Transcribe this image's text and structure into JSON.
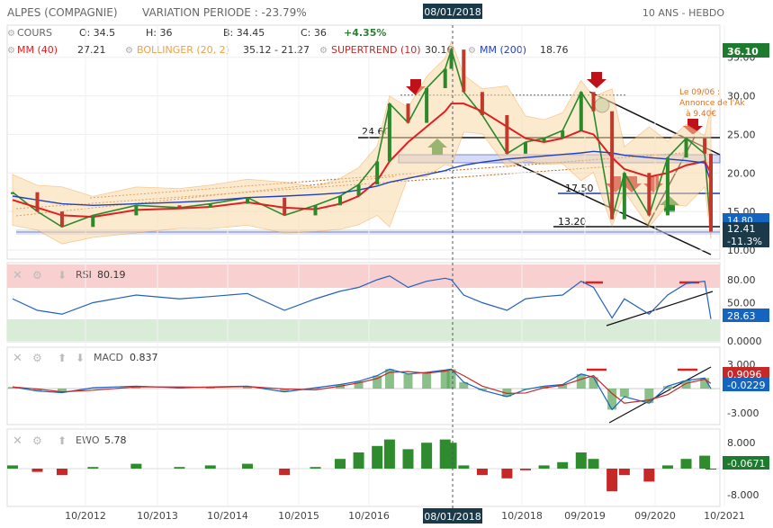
{
  "header": {
    "company": "ALPES (COMPAGNIE)",
    "variation": "VARIATION PERIODE : -23.79%",
    "date_badge": "08/01/2018",
    "period": "10 ANS - HEBDO"
  },
  "legend": {
    "cours": "COURS",
    "open": "O: 34.5",
    "high": "H: 36",
    "low": "B: 34.45",
    "close": "C: 36",
    "change": "+4.35%",
    "mm40": "MM (40)",
    "mm40_value": "27.21",
    "bollinger": "BOLLINGER (20, 2)",
    "bollinger_value": "35.12 - 21.27",
    "supertrend": "SUPERTREND (10)",
    "supertrend_value": "30.16",
    "mm200": "MM (200)",
    "mm200_value": "18.76"
  },
  "annotations": {
    "note_line1": "Le 09/06 :",
    "note_line2": "Annonce de l'Ak",
    "note_line3": "à 9.40€",
    "level_2460": "24.60",
    "level_1750": "17.50",
    "level_1320": "13.20"
  },
  "price_badges": {
    "top": "36.10",
    "last": "12.41",
    "change": "-11.3%",
    "hidden": "14.80"
  },
  "rsi": {
    "label": "RSI",
    "value": "80.19",
    "badge": "28.63"
  },
  "macd": {
    "label": "MACD",
    "value": "0.837",
    "badge1": "0.9096",
    "badge2": "-0.0229"
  },
  "ewo": {
    "label": "EWO",
    "value": "5.78",
    "badge": "-0.0671"
  },
  "colors": {
    "price": "#2a8a2a",
    "down": "#c0392b",
    "mm40": "#e02020",
    "bollinger": "#f0a040",
    "supertrend": "#b03020",
    "mm200": "#2040c0",
    "rsi": "#2060c0",
    "accent_green": "#2e7d32",
    "accent_blue": "#1565c0",
    "badge_red": "#c62828"
  },
  "chart_data": {
    "type": "line",
    "title": "ALPES (COMPAGNIE)",
    "x_ticks": [
      "10/2012",
      "10/2013",
      "10/2014",
      "10/2015",
      "10/2016",
      "08/01/2018",
      "10/2018",
      "09/2019",
      "09/2020",
      "10/2021"
    ],
    "y_ticks": [
      "35.00",
      "30.00",
      "25.00",
      "20.00",
      "15.00",
      "10.00"
    ],
    "ylim": [
      10,
      36
    ],
    "x": [
      "2012-02",
      "2012-06",
      "2012-10",
      "2013-03",
      "2013-10",
      "2014-05",
      "2014-10",
      "2015-04",
      "2015-10",
      "2016-03",
      "2016-07",
      "2016-10",
      "2017-01",
      "2017-03",
      "2017-06",
      "2017-09",
      "2017-12",
      "2018-01",
      "2018-03",
      "2018-06",
      "2018-10",
      "2019-01",
      "2019-04",
      "2019-07",
      "2019-10",
      "2019-12",
      "2020-03",
      "2020-05",
      "2020-09",
      "2020-12",
      "2021-03",
      "2021-06",
      "2021-07"
    ],
    "series": [
      {
        "name": "COURS",
        "values": [
          17.5,
          15.0,
          13.0,
          14.5,
          15.8,
          15.5,
          16.0,
          16.8,
          14.5,
          15.8,
          17.0,
          18.5,
          21.5,
          29.0,
          26.5,
          31.0,
          33.5,
          36.0,
          30.5,
          27.5,
          22.5,
          24.0,
          24.5,
          25.5,
          30.5,
          28.0,
          14.0,
          20.0,
          14.5,
          22.0,
          24.5,
          22.5,
          12.41
        ]
      },
      {
        "name": "MM (40)",
        "values": [
          16.5,
          15.5,
          14.5,
          14.3,
          15.2,
          15.4,
          15.6,
          16.2,
          15.5,
          15.3,
          16.0,
          17.0,
          19.0,
          21.5,
          24.0,
          26.0,
          28.0,
          29.0,
          29.0,
          28.0,
          26.0,
          24.5,
          24.0,
          24.5,
          25.5,
          25.0,
          22.0,
          20.5,
          19.5,
          20.0,
          21.0,
          21.5,
          20.0
        ]
      },
      {
        "name": "MM (200)",
        "values": [
          17.0,
          16.5,
          16.0,
          15.8,
          16.0,
          16.2,
          16.4,
          16.8,
          17.0,
          17.2,
          17.4,
          17.8,
          18.3,
          18.8,
          19.3,
          19.8,
          20.3,
          20.6,
          21.0,
          21.4,
          21.8,
          22.0,
          22.2,
          22.4,
          22.6,
          22.8,
          22.6,
          22.3,
          22.0,
          21.8,
          21.6,
          21.3,
          18.76
        ]
      }
    ],
    "rsi": {
      "ylim": [
        0,
        100
      ],
      "y_ticks": [
        "80.00",
        "50.00",
        "0.0000"
      ],
      "values": [
        55,
        40,
        35,
        50,
        60,
        55,
        58,
        62,
        40,
        55,
        65,
        70,
        80,
        85,
        70,
        78,
        82,
        80,
        60,
        50,
        40,
        55,
        58,
        60,
        78,
        70,
        30,
        55,
        35,
        60,
        75,
        78,
        28.63
      ]
    },
    "macd": {
      "y_ticks": [
        "3.000",
        "-3.000"
      ],
      "values": [
        0.2,
        -0.3,
        -0.5,
        0.1,
        0.3,
        0.1,
        0.2,
        0.3,
        -0.4,
        0.1,
        0.5,
        0.9,
        1.6,
        2.4,
        1.8,
        2.0,
        2.3,
        2.4,
        0.8,
        -0.2,
        -1.0,
        -0.1,
        0.3,
        0.5,
        1.8,
        1.4,
        -2.6,
        -1.0,
        -1.8,
        0.3,
        1.0,
        1.3,
        -0.0229
      ]
    },
    "ewo": {
      "y_ticks": [
        "8.000",
        "-8.000"
      ],
      "values": [
        1,
        -1,
        -2,
        0.5,
        1.5,
        0.5,
        1,
        1.5,
        -2,
        0.5,
        3,
        5,
        7,
        9,
        6,
        8,
        9,
        8,
        1,
        -2,
        -3,
        -0.5,
        1,
        2,
        5,
        3,
        -7,
        -2,
        -4,
        1,
        3,
        4,
        -0.0671
      ]
    }
  }
}
